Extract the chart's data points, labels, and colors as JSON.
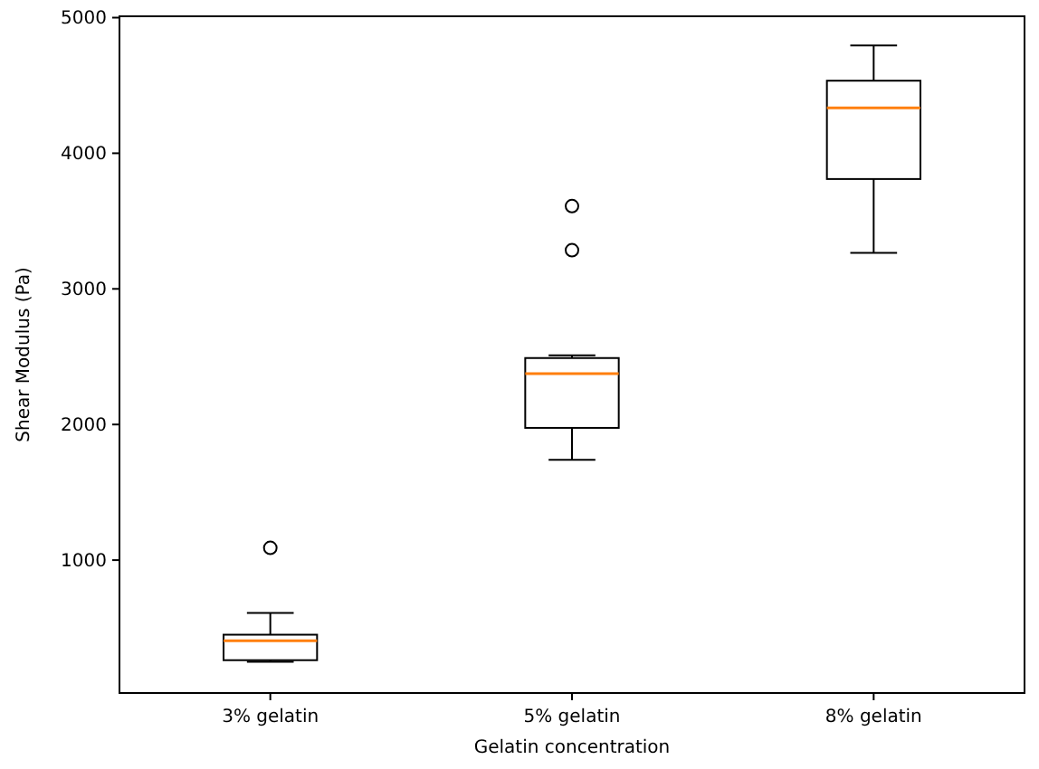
{
  "chart_data": {
    "type": "box",
    "xlabel": "Gelatin concentration",
    "ylabel": "Shear Modulus (Pa)",
    "categories": [
      "3% gelatin",
      "5% gelatin",
      "8% gelatin"
    ],
    "boxes": [
      {
        "low": 250,
        "q1": 262,
        "median": 405,
        "q3": 450,
        "high": 610,
        "outliers": [
          1090
        ]
      },
      {
        "low": 1740,
        "q1": 1975,
        "median": 2375,
        "q3": 2490,
        "high": 2510,
        "outliers": [
          3610,
          3285
        ]
      },
      {
        "low": 3265,
        "q1": 3810,
        "median": 4335,
        "q3": 4535,
        "high": 4795
      }
    ],
    "color": "#000000",
    "ylim": [
      20,
      5010
    ],
    "yticks": [
      1000,
      2000,
      3000,
      4000,
      5000
    ],
    "grid": false
  }
}
